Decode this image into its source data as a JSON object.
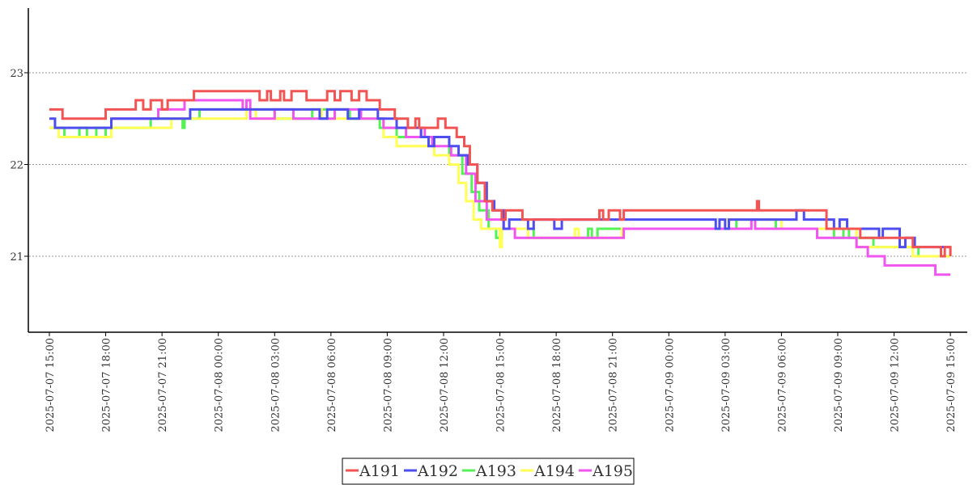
{
  "chart_data": {
    "type": "line",
    "title": "",
    "xlabel": "",
    "ylabel": "",
    "ylim": [
      20.17,
      23.7
    ],
    "xlim_hours_from_start": [
      -1.1,
      48.2
    ],
    "grid": "horizontal-dotted",
    "legend_placement": "bottom-center",
    "x_start": "2025-07-07 15:00",
    "x_unit": "hours since 2025-07-07 15:00",
    "y_ticks": [
      21,
      22,
      23
    ],
    "y_tick_labels": [
      "21",
      "22",
      "23"
    ],
    "x_ticks": [
      0,
      3,
      6,
      9,
      12,
      15,
      18,
      21,
      24,
      27,
      30,
      33,
      36,
      39,
      42,
      45,
      48
    ],
    "x_tick_labels": [
      "2025-07-07  15:00",
      "2025-07-07  18:00",
      "2025-07-07  21:00",
      "2025-07-08  00:00",
      "2025-07-08  03:00",
      "2025-07-08  06:00",
      "2025-07-08  09:00",
      "2025-07-08  12:00",
      "2025-07-08  15:00",
      "2025-07-08  18:00",
      "2025-07-08  21:00",
      "2025-07-09  00:00",
      "2025-07-09  03:00",
      "2025-07-09  06:00",
      "2025-07-09  09:00",
      "2025-07-09  12:00",
      "2025-07-09  15:00"
    ],
    "series": [
      {
        "name": "A191",
        "color": "#f25454",
        "points": [
          [
            0,
            22.6
          ],
          [
            0.7,
            22.5
          ],
          [
            3,
            22.6
          ],
          [
            4.6,
            22.7
          ],
          [
            5,
            22.6
          ],
          [
            5.4,
            22.7
          ],
          [
            6,
            22.6
          ],
          [
            6.3,
            22.7
          ],
          [
            7.7,
            22.8
          ],
          [
            11.2,
            22.7
          ],
          [
            11.6,
            22.8
          ],
          [
            11.8,
            22.7
          ],
          [
            12.3,
            22.8
          ],
          [
            12.5,
            22.7
          ],
          [
            12.9,
            22.8
          ],
          [
            13.7,
            22.7
          ],
          [
            14.8,
            22.8
          ],
          [
            15.2,
            22.7
          ],
          [
            15.5,
            22.8
          ],
          [
            16.1,
            22.7
          ],
          [
            16.5,
            22.8
          ],
          [
            16.9,
            22.7
          ],
          [
            17.6,
            22.6
          ],
          [
            18.4,
            22.5
          ],
          [
            19.1,
            22.4
          ],
          [
            19.5,
            22.5
          ],
          [
            19.7,
            22.4
          ],
          [
            20.7,
            22.5
          ],
          [
            21.1,
            22.4
          ],
          [
            21.7,
            22.3
          ],
          [
            22.1,
            22.2
          ],
          [
            22.4,
            22.0
          ],
          [
            22.8,
            21.8
          ],
          [
            23.2,
            21.6
          ],
          [
            23.6,
            21.5
          ],
          [
            24.1,
            21.4
          ],
          [
            24.3,
            21.5
          ],
          [
            25.2,
            21.4
          ],
          [
            29.3,
            21.5
          ],
          [
            29.5,
            21.4
          ],
          [
            29.8,
            21.5
          ],
          [
            30.4,
            21.4
          ],
          [
            30.6,
            21.5
          ],
          [
            37.7,
            21.6
          ],
          [
            37.8,
            21.5
          ],
          [
            41.4,
            21.3
          ],
          [
            43.2,
            21.2
          ],
          [
            46,
            21.1
          ],
          [
            47.5,
            21.0
          ],
          [
            47.7,
            21.1
          ],
          [
            48,
            21.0
          ]
        ]
      },
      {
        "name": "A192",
        "color": "#4e4ef0",
        "points": [
          [
            0,
            22.5
          ],
          [
            0.3,
            22.4
          ],
          [
            3.3,
            22.5
          ],
          [
            7.5,
            22.6
          ],
          [
            14.4,
            22.5
          ],
          [
            14.8,
            22.6
          ],
          [
            15.9,
            22.5
          ],
          [
            16.5,
            22.6
          ],
          [
            17.5,
            22.5
          ],
          [
            18.5,
            22.4
          ],
          [
            19.8,
            22.3
          ],
          [
            20.2,
            22.2
          ],
          [
            20.5,
            22.3
          ],
          [
            21.3,
            22.2
          ],
          [
            21.8,
            22.1
          ],
          [
            22.3,
            22.0
          ],
          [
            22.8,
            21.8
          ],
          [
            23.3,
            21.6
          ],
          [
            23.7,
            21.5
          ],
          [
            24.2,
            21.3
          ],
          [
            24.5,
            21.4
          ],
          [
            25.5,
            21.3
          ],
          [
            25.8,
            21.4
          ],
          [
            26.9,
            21.3
          ],
          [
            27.3,
            21.4
          ],
          [
            35.5,
            21.3
          ],
          [
            35.7,
            21.4
          ],
          [
            36,
            21.3
          ],
          [
            36.2,
            21.4
          ],
          [
            39.8,
            21.5
          ],
          [
            40.2,
            21.4
          ],
          [
            41.8,
            21.3
          ],
          [
            42.1,
            21.4
          ],
          [
            42.5,
            21.3
          ],
          [
            44.2,
            21.2
          ],
          [
            44.4,
            21.3
          ],
          [
            45.3,
            21.1
          ],
          [
            45.6,
            21.2
          ],
          [
            46.1,
            21.1
          ],
          [
            48,
            21.1
          ]
        ]
      },
      {
        "name": "A193",
        "color": "#54f254",
        "points": [
          [
            0,
            22.4
          ],
          [
            0.8,
            22.3
          ],
          [
            1.6,
            22.4
          ],
          [
            2,
            22.3
          ],
          [
            2.5,
            22.4
          ],
          [
            3,
            22.3
          ],
          [
            3.3,
            22.4
          ],
          [
            5.4,
            22.5
          ],
          [
            7.1,
            22.4
          ],
          [
            7.2,
            22.5
          ],
          [
            8,
            22.6
          ],
          [
            12,
            22.5
          ],
          [
            14,
            22.6
          ],
          [
            16,
            22.5
          ],
          [
            17.6,
            22.4
          ],
          [
            18.5,
            22.3
          ],
          [
            21.3,
            22.1
          ],
          [
            22,
            21.9
          ],
          [
            22.5,
            21.7
          ],
          [
            22.9,
            21.5
          ],
          [
            23.4,
            21.3
          ],
          [
            23.8,
            21.2
          ],
          [
            24.1,
            21.3
          ],
          [
            25.8,
            21.2
          ],
          [
            28.7,
            21.3
          ],
          [
            28.9,
            21.2
          ],
          [
            29.2,
            21.3
          ],
          [
            36.6,
            21.4
          ],
          [
            38.7,
            21.3
          ],
          [
            41.8,
            21.2
          ],
          [
            42.3,
            21.3
          ],
          [
            42.6,
            21.2
          ],
          [
            43.9,
            21.1
          ],
          [
            46.3,
            21.0
          ],
          [
            48,
            21.0
          ]
        ]
      },
      {
        "name": "A194",
        "color": "#ffff55",
        "points": [
          [
            0,
            22.4
          ],
          [
            0.5,
            22.3
          ],
          [
            3,
            22.3
          ],
          [
            3.3,
            22.4
          ],
          [
            6.5,
            22.5
          ],
          [
            10.5,
            22.6
          ],
          [
            11,
            22.5
          ],
          [
            13,
            22.6
          ],
          [
            14.5,
            22.5
          ],
          [
            17.8,
            22.3
          ],
          [
            18.5,
            22.2
          ],
          [
            20.5,
            22.1
          ],
          [
            21.3,
            22.0
          ],
          [
            21.8,
            21.8
          ],
          [
            22.2,
            21.6
          ],
          [
            22.6,
            21.4
          ],
          [
            23,
            21.3
          ],
          [
            24,
            21.1
          ],
          [
            24.1,
            21.3
          ],
          [
            25.5,
            21.2
          ],
          [
            28,
            21.3
          ],
          [
            28.2,
            21.2
          ],
          [
            30.5,
            21.3
          ],
          [
            36,
            21.4
          ],
          [
            39,
            21.3
          ],
          [
            43,
            21.1
          ],
          [
            46,
            21.0
          ],
          [
            48,
            21.0
          ]
        ]
      },
      {
        "name": "A195",
        "color": "#f055f0",
        "points": [
          [
            3.3,
            22.5
          ],
          [
            5.8,
            22.6
          ],
          [
            7.2,
            22.7
          ],
          [
            10.3,
            22.6
          ],
          [
            10.5,
            22.7
          ],
          [
            10.7,
            22.5
          ],
          [
            12,
            22.6
          ],
          [
            13,
            22.5
          ],
          [
            15.2,
            22.6
          ],
          [
            16.6,
            22.5
          ],
          [
            17.8,
            22.4
          ],
          [
            19,
            22.3
          ],
          [
            19.8,
            22.4
          ],
          [
            20,
            22.3
          ],
          [
            20.4,
            22.2
          ],
          [
            21.4,
            22.1
          ],
          [
            22.2,
            21.9
          ],
          [
            22.7,
            21.6
          ],
          [
            23.3,
            21.4
          ],
          [
            24.2,
            21.3
          ],
          [
            24.8,
            21.2
          ],
          [
            30.6,
            21.3
          ],
          [
            37.4,
            21.4
          ],
          [
            37.6,
            21.3
          ],
          [
            40.9,
            21.2
          ],
          [
            43,
            21.1
          ],
          [
            43.6,
            21.0
          ],
          [
            44.5,
            20.9
          ],
          [
            47.2,
            20.8
          ],
          [
            48,
            20.8
          ]
        ]
      }
    ]
  }
}
